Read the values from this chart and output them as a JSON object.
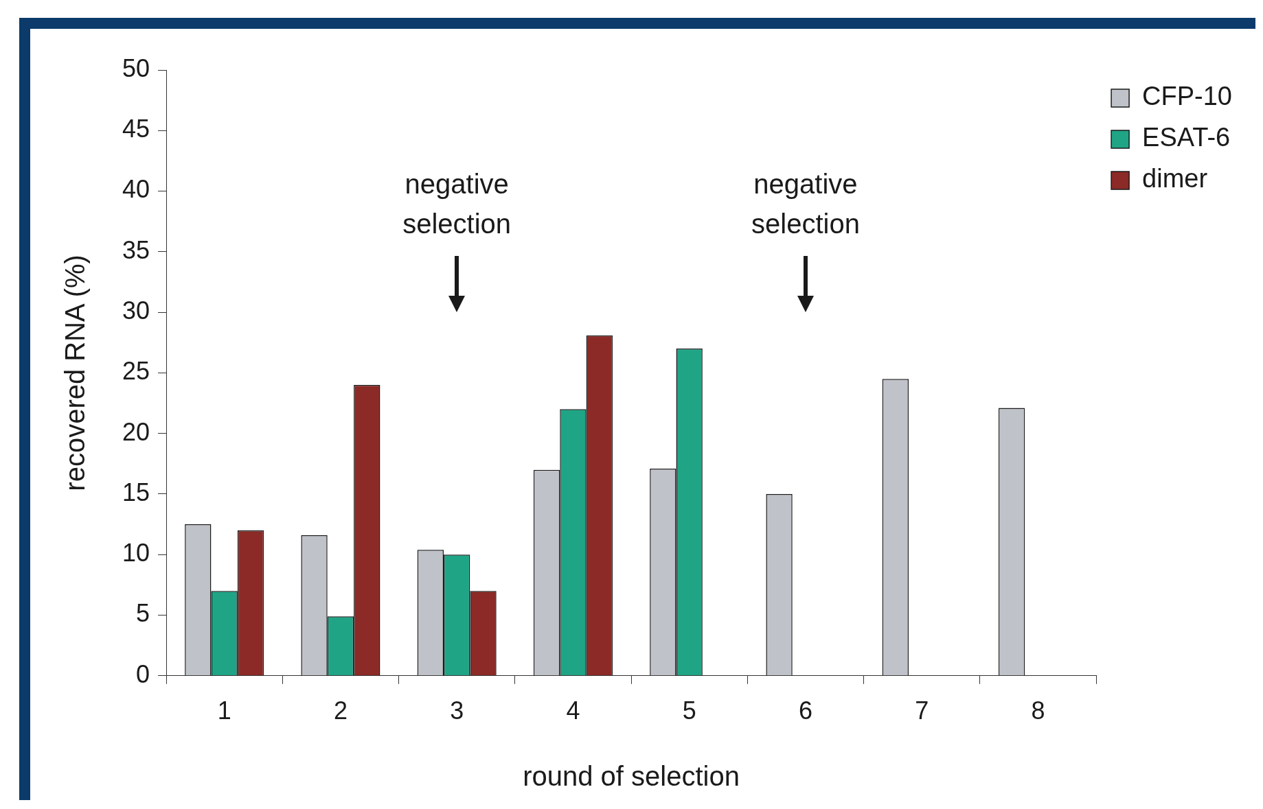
{
  "chart_data": {
    "type": "bar",
    "xlabel": "round of selection",
    "ylabel": "recovered RNA (%)",
    "categories": [
      "1",
      "2",
      "3",
      "4",
      "5",
      "6",
      "7",
      "8"
    ],
    "series": [
      {
        "name": "CFP-10",
        "color": "#c0c2c9",
        "values": [
          12.5,
          11.6,
          10.4,
          17,
          17.1,
          15,
          24.5,
          22.1
        ]
      },
      {
        "name": "ESAT-6",
        "color": "#1fa585",
        "values": [
          7,
          4.9,
          10,
          22,
          27,
          null,
          null,
          null
        ]
      },
      {
        "name": "dimer",
        "color": "#8b2a26",
        "values": [
          12,
          24,
          7,
          28.1,
          null,
          null,
          null,
          null
        ]
      }
    ],
    "ylim": [
      0,
      50
    ],
    "yticks": [
      0,
      5,
      10,
      15,
      20,
      25,
      30,
      35,
      40,
      45,
      50
    ],
    "grid": false,
    "legend": "top right",
    "annotations": [
      "negative selection",
      "negative selection"
    ]
  }
}
